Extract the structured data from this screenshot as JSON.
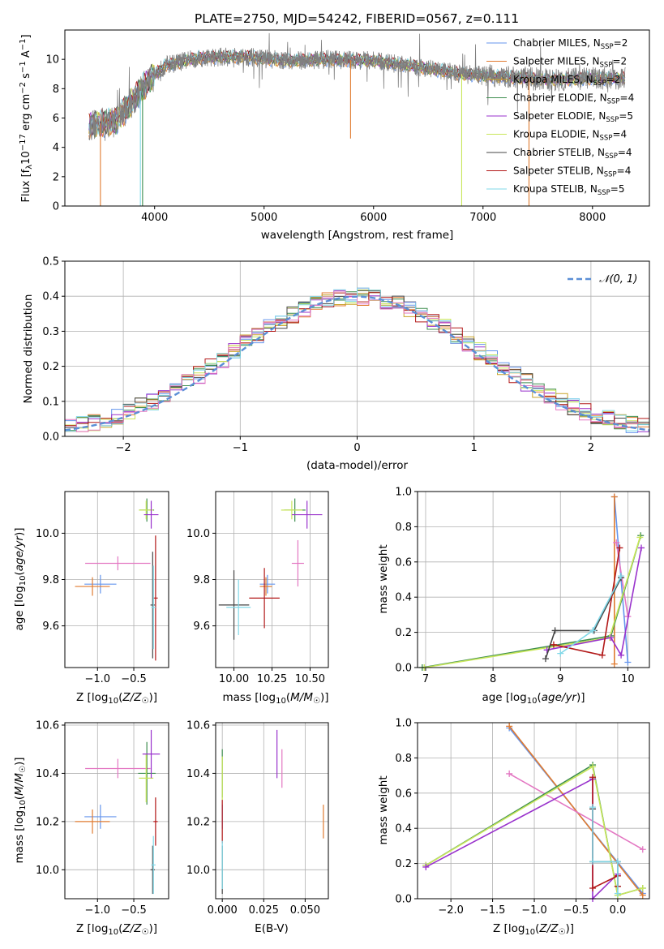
{
  "figure": {
    "title": "PLATE=2750, MJD=54242, FIBERID=0567, z=0.111"
  },
  "colors": {
    "CM": "#6495ed",
    "SM": "#e07b30",
    "KM": "#c9a227",
    "CE": "#3e8e4f",
    "SE": "#9932cc",
    "KE": "#c8e65a",
    "CS": "#444444",
    "SS": "#b21818",
    "KS": "#80d8e8",
    "data": "#808080",
    "pink": "#e377c2",
    "normal": "#5b8fd6"
  },
  "chart_data": [
    {
      "id": "spectrum",
      "type": "line",
      "title": "PLATE=2750, MJD=54242, FIBERID=0567, z=0.111",
      "xlabel": "wavelength [Angstrom, rest frame]",
      "ylabel": "Flux [f_λ 10^-17 erg cm^-2 s^-1 A^-1]",
      "xlim": [
        3180,
        8520
      ],
      "ylim": [
        0,
        12
      ],
      "xticks": [
        4000,
        5000,
        6000,
        7000,
        8000
      ],
      "yticks": [
        0,
        2,
        4,
        6,
        8,
        10
      ],
      "grid": false,
      "legend": "upper right",
      "legend_entries": [
        {
          "key": "CM",
          "text": "Chabrier MILES, N",
          "ssp": "2"
        },
        {
          "key": "SM",
          "text": "Salpeter MILES, N",
          "ssp": "2"
        },
        {
          "key": "KM",
          "text": "Kroupa MILES, N",
          "ssp": "2"
        },
        {
          "key": "CE",
          "text": "Chabrier ELODIE, N",
          "ssp": "4"
        },
        {
          "key": "SE",
          "text": "Salpeter ELODIE, N",
          "ssp": "5"
        },
        {
          "key": "KE",
          "text": "Kroupa ELODIE, N",
          "ssp": "4"
        },
        {
          "key": "CS",
          "text": "Chabrier STELIB, N",
          "ssp": "4"
        },
        {
          "key": "SS",
          "text": "Salpeter STELIB, N",
          "ssp": "4"
        },
        {
          "key": "KS",
          "text": "Kroupa STELIB, N",
          "ssp": "5"
        }
      ],
      "continuum": [
        [
          3400,
          5.5
        ],
        [
          3650,
          5.8
        ],
        [
          3800,
          7.2
        ],
        [
          3950,
          8.6
        ],
        [
          4100,
          9.6
        ],
        [
          4400,
          10.1
        ],
        [
          4800,
          10.2
        ],
        [
          5200,
          9.9
        ],
        [
          5600,
          10.0
        ],
        [
          6000,
          9.9
        ],
        [
          6400,
          9.5
        ],
        [
          6800,
          9.0
        ],
        [
          7200,
          8.8
        ],
        [
          7600,
          8.6
        ],
        [
          8000,
          8.7
        ],
        [
          8300,
          8.7
        ]
      ],
      "dips": [
        {
          "x": 3505,
          "key": "SM",
          "depth": 0
        },
        {
          "x": 3870,
          "key": "KS",
          "depth": 0
        },
        {
          "x": 3890,
          "key": "CE",
          "depth": 0
        },
        {
          "x": 5790,
          "key": "SM",
          "depth": 4.6
        },
        {
          "x": 6805,
          "key": "KE",
          "depth": 0
        },
        {
          "x": 7420,
          "key": "SM",
          "depth": 0
        }
      ]
    },
    {
      "id": "residuals",
      "type": "histogram",
      "xlabel": "(data-model)/error",
      "ylabel": "Normed distribution",
      "xlim": [
        -2.5,
        2.5
      ],
      "ylim": [
        0,
        0.5
      ],
      "xticks": [
        -2,
        -1,
        0,
        1,
        2
      ],
      "yticks": [
        0.0,
        0.1,
        0.2,
        0.3,
        0.4,
        0.5
      ],
      "grid": true,
      "legend": "upper right",
      "legend_label": "N(0,1)",
      "bin_width": 0.1
    },
    {
      "id": "age_vs_Z",
      "type": "errorbar",
      "xlabel": "Z [log10(Z/Z☉)]",
      "ylabel": "age [log10(age/yr)]",
      "xlim": [
        -1.45,
        -0.02
      ],
      "ylim": [
        9.42,
        10.18
      ],
      "xticks": [
        -1.0,
        -0.5
      ],
      "yticks": [
        9.6,
        9.8,
        10.0
      ],
      "grid": true,
      "points": [
        {
          "key": "CM",
          "x": -0.96,
          "y": 9.78,
          "xe": 0.22,
          "ye": 0.04
        },
        {
          "key": "SM",
          "x": -1.07,
          "y": 9.77,
          "xe": 0.24,
          "ye": 0.04
        },
        {
          "key": "pink",
          "x": -0.72,
          "y": 9.87,
          "xe": 0.45,
          "ye": 0.03
        },
        {
          "key": "CE",
          "x": -0.32,
          "y": 10.1,
          "xe": 0.1,
          "ye": 0.05
        },
        {
          "key": "KE",
          "x": -0.33,
          "y": 10.1,
          "xe": 0.1,
          "ye": 0.04
        },
        {
          "key": "SE",
          "x": -0.26,
          "y": 10.08,
          "xe": 0.1,
          "ye": 0.06
        },
        {
          "key": "CS",
          "x": -0.24,
          "y": 9.69,
          "xe": 0.03,
          "ye": 0.23
        },
        {
          "key": "SS",
          "x": -0.2,
          "y": 9.72,
          "xe": 0.03,
          "ye": 0.27
        },
        {
          "key": "KS",
          "x": -0.23,
          "y": 9.68,
          "xe": 0.03,
          "ye": 0.18
        }
      ]
    },
    {
      "id": "age_vs_mass",
      "type": "errorbar",
      "xlabel": "mass [log10(M/M☉)]",
      "ylabel": "",
      "xlim": [
        9.88,
        10.62
      ],
      "ylim": [
        9.42,
        10.18
      ],
      "xticks": [
        10.0,
        10.25,
        10.5
      ],
      "yticks": [
        9.6,
        9.8,
        10.0
      ],
      "grid": true,
      "points": [
        {
          "key": "CM",
          "x": 10.22,
          "y": 9.78,
          "xe": 0.05,
          "ye": 0.04
        },
        {
          "key": "SM",
          "x": 10.21,
          "y": 9.77,
          "xe": 0.04,
          "ye": 0.04
        },
        {
          "key": "pink",
          "x": 10.42,
          "y": 9.87,
          "xe": 0.04,
          "ye": 0.1
        },
        {
          "key": "CE",
          "x": 10.4,
          "y": 10.1,
          "xe": 0.07,
          "ye": 0.05
        },
        {
          "key": "KE",
          "x": 10.38,
          "y": 10.1,
          "xe": 0.07,
          "ye": 0.04
        },
        {
          "key": "SE",
          "x": 10.48,
          "y": 10.08,
          "xe": 0.1,
          "ye": 0.06
        },
        {
          "key": "CS",
          "x": 10.0,
          "y": 9.69,
          "xe": 0.1,
          "ye": 0.15
        },
        {
          "key": "SS",
          "x": 10.2,
          "y": 9.72,
          "xe": 0.1,
          "ye": 0.13
        },
        {
          "key": "KS",
          "x": 10.03,
          "y": 9.68,
          "xe": 0.08,
          "ye": 0.12
        }
      ]
    },
    {
      "id": "mass_weight_vs_age",
      "type": "line",
      "xlabel": "age [log10(age/yr)]",
      "ylabel": "mass weight",
      "xlim": [
        6.88,
        10.32
      ],
      "ylim": [
        0,
        1
      ],
      "xticks": [
        7,
        8,
        9,
        10
      ],
      "yticks": [
        0.0,
        0.2,
        0.4,
        0.6,
        0.8,
        1.0
      ],
      "grid": true,
      "series": [
        {
          "key": "CM",
          "x": [
            9.8,
            10.0
          ],
          "y": [
            0.97,
            0.03
          ]
        },
        {
          "key": "SM",
          "x": [
            9.8,
            9.8
          ],
          "y": [
            0.97,
            0.02
          ]
        },
        {
          "key": "pink",
          "x": [
            9.83,
            10.0
          ],
          "y": [
            0.71,
            0.29
          ]
        },
        {
          "key": "CE",
          "x": [
            6.95,
            9.75,
            10.19
          ],
          "y": [
            0.0,
            0.18,
            0.75
          ]
        },
        {
          "key": "KE",
          "x": [
            6.98,
            9.73,
            10.18
          ],
          "y": [
            0.0,
            0.17,
            0.74
          ]
        },
        {
          "key": "SE",
          "x": [
            8.8,
            9.75,
            9.9,
            10.2
          ],
          "y": [
            0.1,
            0.17,
            0.07,
            0.68
          ]
        },
        {
          "key": "CS",
          "x": [
            8.78,
            8.92,
            9.5,
            9.9
          ],
          "y": [
            0.05,
            0.21,
            0.21,
            0.51
          ]
        },
        {
          "key": "SS",
          "x": [
            8.9,
            9.62,
            9.88
          ],
          "y": [
            0.13,
            0.07,
            0.68
          ]
        },
        {
          "key": "KS",
          "x": [
            9.0,
            9.48,
            9.9
          ],
          "y": [
            0.08,
            0.21,
            0.52
          ]
        }
      ]
    },
    {
      "id": "mass_vs_Z",
      "type": "errorbar",
      "xlabel": "Z [log10(Z/Z☉)]",
      "ylabel": "mass [log10(M/M☉)]",
      "xlim": [
        -1.45,
        -0.02
      ],
      "ylim": [
        9.88,
        10.61
      ],
      "xticks": [
        -1.0,
        -0.5
      ],
      "yticks": [
        10.0,
        10.2,
        10.4,
        10.6
      ],
      "grid": true,
      "points": [
        {
          "key": "CM",
          "x": -0.96,
          "y": 10.22,
          "xe": 0.22,
          "ye": 0.05
        },
        {
          "key": "SM",
          "x": -1.07,
          "y": 10.2,
          "xe": 0.24,
          "ye": 0.05
        },
        {
          "key": "pink",
          "x": -0.72,
          "y": 10.42,
          "xe": 0.45,
          "ye": 0.04
        },
        {
          "key": "CE",
          "x": -0.32,
          "y": 10.4,
          "xe": 0.12,
          "ye": 0.13
        },
        {
          "key": "KE",
          "x": -0.33,
          "y": 10.38,
          "xe": 0.1,
          "ye": 0.1
        },
        {
          "key": "SE",
          "x": -0.26,
          "y": 10.48,
          "xe": 0.12,
          "ye": 0.1
        },
        {
          "key": "CS",
          "x": -0.24,
          "y": 10.0,
          "xe": 0.03,
          "ye": 0.1
        },
        {
          "key": "SS",
          "x": -0.2,
          "y": 10.2,
          "xe": 0.03,
          "ye": 0.1
        },
        {
          "key": "KS",
          "x": -0.23,
          "y": 10.02,
          "xe": 0.03,
          "ye": 0.12
        }
      ]
    },
    {
      "id": "mass_vs_EBV",
      "type": "errorbar",
      "xlabel": "E(B-V)",
      "ylabel": "",
      "xlim": [
        -0.004,
        0.064
      ],
      "ylim": [
        9.88,
        10.61
      ],
      "xticks": [
        0.0,
        0.025,
        0.05
      ],
      "yticks": [
        10.0,
        10.2,
        10.4,
        10.6
      ],
      "grid": true,
      "points": [
        {
          "key": "CM",
          "x": 0.0,
          "y": 10.22,
          "xe": 0,
          "ye": 0.05
        },
        {
          "key": "SM",
          "x": 0.061,
          "y": 10.2,
          "xe": 0,
          "ye": 0.07
        },
        {
          "key": "pink",
          "x": 0.036,
          "y": 10.42,
          "xe": 0,
          "ye": 0.08
        },
        {
          "key": "CE",
          "x": 0.0,
          "y": 10.4,
          "xe": 0,
          "ye": 0.1
        },
        {
          "key": "KE",
          "x": 0.0,
          "y": 10.38,
          "xe": 0,
          "ye": 0.09
        },
        {
          "key": "SE",
          "x": 0.033,
          "y": 10.48,
          "xe": 0,
          "ye": 0.1
        },
        {
          "key": "CS",
          "x": 0.0,
          "y": 10.0,
          "xe": 0,
          "ye": 0.1
        },
        {
          "key": "SS",
          "x": 0.0,
          "y": 10.2,
          "xe": 0,
          "ye": 0.09
        },
        {
          "key": "KS",
          "x": 0.0,
          "y": 10.02,
          "xe": 0,
          "ye": 0.1
        }
      ]
    },
    {
      "id": "mass_weight_vs_Z",
      "type": "line",
      "xlabel": "Z [log10(Z/Z☉)]",
      "ylabel": "mass weight",
      "xlim": [
        -2.4,
        0.38
      ],
      "ylim": [
        0,
        1
      ],
      "xticks": [
        -2.0,
        -1.5,
        -1.0,
        -0.5,
        0.0
      ],
      "yticks": [
        0.0,
        0.2,
        0.4,
        0.6,
        0.8,
        1.0
      ],
      "grid": true,
      "series": [
        {
          "key": "CM",
          "x": [
            -1.3,
            0.3
          ],
          "y": [
            0.97,
            0.03
          ]
        },
        {
          "key": "SM",
          "x": [
            -1.3,
            0.3
          ],
          "y": [
            0.98,
            0.02
          ]
        },
        {
          "key": "pink",
          "x": [
            -1.3,
            0.3
          ],
          "y": [
            0.71,
            0.28
          ]
        },
        {
          "key": "CE",
          "x": [
            -2.3,
            -0.3,
            0.0,
            0.3
          ],
          "y": [
            0.19,
            0.76,
            0.02,
            0.06
          ]
        },
        {
          "key": "KE",
          "x": [
            -2.3,
            -0.3,
            0.0,
            0.3
          ],
          "y": [
            0.19,
            0.75,
            0.02,
            0.06
          ]
        },
        {
          "key": "SE",
          "x": [
            -2.3,
            -0.3,
            -0.3,
            0.0
          ],
          "y": [
            0.18,
            0.68,
            0.0,
            0.14
          ]
        },
        {
          "key": "CS",
          "x": [
            -0.3,
            -0.3,
            0.0,
            0.0
          ],
          "y": [
            0.51,
            0.21,
            0.21,
            0.07
          ]
        },
        {
          "key": "SS",
          "x": [
            -0.3,
            -0.3,
            0.0,
            0.0
          ],
          "y": [
            0.69,
            0.06,
            0.13,
            0.07
          ]
        },
        {
          "key": "KS",
          "x": [
            -0.3,
            -0.3,
            0.0,
            0.0
          ],
          "y": [
            0.52,
            0.21,
            0.21,
            0.03
          ]
        }
      ]
    }
  ]
}
